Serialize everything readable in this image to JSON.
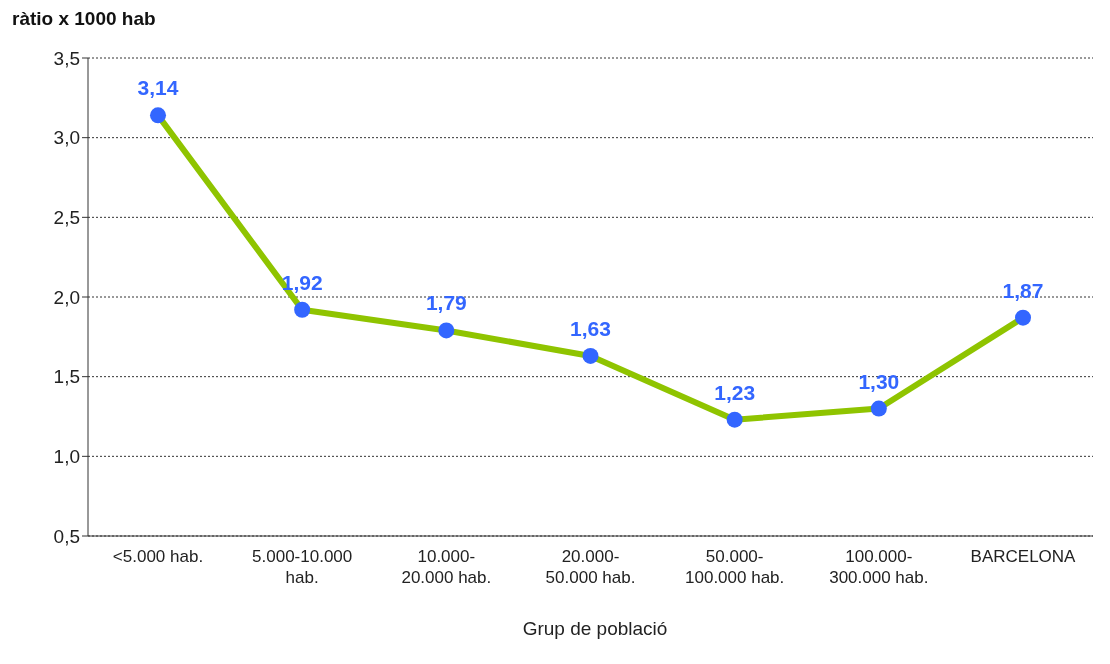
{
  "chart_data": {
    "type": "line",
    "ylabel": "ràtio x 1000 hab",
    "xlabel": "Grup de població",
    "categories": [
      "<5.000 hab.",
      "5.000-10.000 hab.",
      "10.000-20.000 hab.",
      "20.000-50.000 hab.",
      "50.000-100.000 hab.",
      "100.000-300.000 hab.",
      "BARCELONA"
    ],
    "series": [
      {
        "color": "#8fc400",
        "colors": [
          "#3366ff",
          "#3366ff",
          "#3366ff",
          "#3366ff",
          "#3366ff",
          "#3366ff",
          "#3366ff"
        ],
        "values": [
          3.14,
          1.92,
          1.79,
          1.63,
          1.23,
          1.3,
          1.87
        ],
        "value_labels": [
          "3,14",
          "1,92",
          "1,79",
          "1,63",
          "1,23",
          "1,30",
          "1,87"
        ]
      }
    ],
    "ylim": [
      0.5,
      3.5
    ],
    "yticks": [
      {
        "value": 0.5,
        "label": "0,5"
      },
      {
        "value": 1.0,
        "label": "1,0"
      },
      {
        "value": 1.5,
        "label": "1,5"
      },
      {
        "value": 2.0,
        "label": "2,0"
      },
      {
        "value": 2.5,
        "label": "2,5"
      },
      {
        "value": 3.0,
        "label": "3,0"
      },
      {
        "value": 3.5,
        "label": "3,5"
      }
    ],
    "grid": "y",
    "marker": "circle",
    "line_style": "solid"
  }
}
